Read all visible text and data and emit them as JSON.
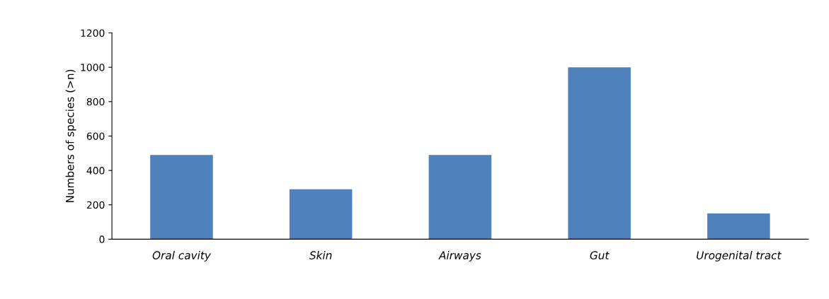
{
  "chart_data": {
    "type": "bar",
    "ylabel": "Numbers of species (>n)",
    "categories": [
      "Oral cavity",
      "Skin",
      "Airways",
      "Gut",
      "Urogenital tract"
    ],
    "values": [
      490,
      290,
      490,
      1000,
      150
    ],
    "color": "#4f81bd",
    "ylim": [
      0,
      1200
    ],
    "yticks": [
      0,
      200,
      400,
      600,
      800,
      1000,
      1200
    ],
    "grid": false
  }
}
